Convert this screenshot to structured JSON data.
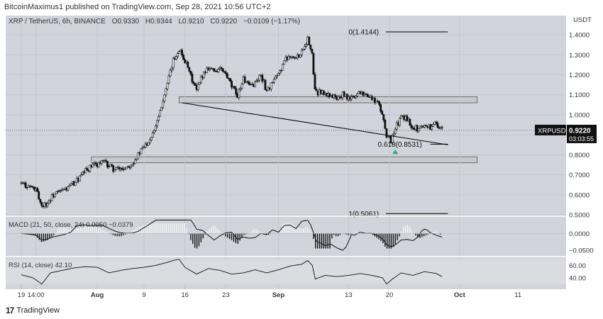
{
  "header": {
    "publisher": "BitcoinMaximus1 published on TradingView.com, Sep 28, 2021 10:56 UTC+2"
  },
  "legend": {
    "pair": "XRP / TetherUS, 6h, BINANCE",
    "o": "0.9330",
    "h": "0.9344",
    "l": "0.9210",
    "c": "0.9220",
    "chg": "−0.0109 (−1.17%)"
  },
  "footer": {
    "brand": "TradingView"
  },
  "chart_data": {
    "type": "candlestick",
    "symbol": "XRPUSDT",
    "last_price": "0.9220",
    "countdown": "03:03:55",
    "currency_label": "USDT",
    "price_ticks": [
      "1.4000",
      "1.3000",
      "1.2000",
      "1.1000",
      "1.0000",
      "0.9000",
      "0.8000",
      "0.7000",
      "0.6000",
      "0.5000"
    ],
    "price_tick_values": [
      1.4,
      1.3,
      1.2,
      1.1,
      1.0,
      0.9,
      0.8,
      0.7,
      0.6,
      0.5
    ],
    "ylim": [
      0.5,
      1.45
    ],
    "xlim": [
      0,
      84
    ],
    "x_ticks": [
      {
        "label": "19",
        "d": 0
      },
      {
        "label": "14:00",
        "d": 2.5
      },
      {
        "label": "Aug",
        "d": 13
      },
      {
        "label": "9",
        "d": 21
      },
      {
        "label": "16",
        "d": 28
      },
      {
        "label": "23",
        "d": 35
      },
      {
        "label": "Sep",
        "d": 44
      },
      {
        "label": "13",
        "d": 56
      },
      {
        "label": "20",
        "d": 63
      },
      {
        "label": "Oct",
        "d": 75
      },
      {
        "label": "11",
        "d": 85
      }
    ],
    "closes": [
      {
        "d": 0,
        "p": 0.655
      },
      {
        "d": 1.5,
        "p": 0.64
      },
      {
        "d": 2.5,
        "p": 0.625
      },
      {
        "d": 3.5,
        "p": 0.545
      },
      {
        "d": 4.5,
        "p": 0.56
      },
      {
        "d": 5.5,
        "p": 0.6
      },
      {
        "d": 7,
        "p": 0.62
      },
      {
        "d": 8,
        "p": 0.635
      },
      {
        "d": 9,
        "p": 0.66
      },
      {
        "d": 10,
        "p": 0.685
      },
      {
        "d": 11,
        "p": 0.72
      },
      {
        "d": 12,
        "p": 0.74
      },
      {
        "d": 13,
        "p": 0.755
      },
      {
        "d": 14,
        "p": 0.765
      },
      {
        "d": 15,
        "p": 0.745
      },
      {
        "d": 16,
        "p": 0.725
      },
      {
        "d": 17,
        "p": 0.73
      },
      {
        "d": 18,
        "p": 0.74
      },
      {
        "d": 19,
        "p": 0.76
      },
      {
        "d": 20,
        "p": 0.8
      },
      {
        "d": 21,
        "p": 0.84
      },
      {
        "d": 22,
        "p": 0.88
      },
      {
        "d": 23,
        "p": 0.95
      },
      {
        "d": 24,
        "p": 1.05
      },
      {
        "d": 25,
        "p": 1.15
      },
      {
        "d": 26,
        "p": 1.27
      },
      {
        "d": 27,
        "p": 1.33
      },
      {
        "d": 28,
        "p": 1.27
      },
      {
        "d": 29,
        "p": 1.19
      },
      {
        "d": 30,
        "p": 1.12
      },
      {
        "d": 31,
        "p": 1.2
      },
      {
        "d": 32,
        "p": 1.24
      },
      {
        "d": 33,
        "p": 1.22
      },
      {
        "d": 34,
        "p": 1.23
      },
      {
        "d": 35,
        "p": 1.2
      },
      {
        "d": 36,
        "p": 1.14
      },
      {
        "d": 37,
        "p": 1.1
      },
      {
        "d": 38,
        "p": 1.18
      },
      {
        "d": 39,
        "p": 1.14
      },
      {
        "d": 40,
        "p": 1.16
      },
      {
        "d": 41,
        "p": 1.2
      },
      {
        "d": 42,
        "p": 1.12
      },
      {
        "d": 43,
        "p": 1.16
      },
      {
        "d": 44,
        "p": 1.2
      },
      {
        "d": 45,
        "p": 1.27
      },
      {
        "d": 46,
        "p": 1.3
      },
      {
        "d": 47,
        "p": 1.28
      },
      {
        "d": 48,
        "p": 1.32
      },
      {
        "d": 49,
        "p": 1.38
      },
      {
        "d": 49.8,
        "p": 1.29
      },
      {
        "d": 50.3,
        "p": 1.1
      },
      {
        "d": 51,
        "p": 1.12
      },
      {
        "d": 52,
        "p": 1.1
      },
      {
        "d": 53,
        "p": 1.1
      },
      {
        "d": 54,
        "p": 1.08
      },
      {
        "d": 55,
        "p": 1.1
      },
      {
        "d": 56,
        "p": 1.08
      },
      {
        "d": 57,
        "p": 1.09
      },
      {
        "d": 58,
        "p": 1.12
      },
      {
        "d": 59,
        "p": 1.1
      },
      {
        "d": 60,
        "p": 1.08
      },
      {
        "d": 61,
        "p": 1.06
      },
      {
        "d": 61.8,
        "p": 1.0
      },
      {
        "d": 62.5,
        "p": 0.9
      },
      {
        "d": 63.2,
        "p": 0.87
      },
      {
        "d": 64,
        "p": 0.93
      },
      {
        "d": 65,
        "p": 0.99
      },
      {
        "d": 66,
        "p": 0.98
      },
      {
        "d": 67,
        "p": 0.94
      },
      {
        "d": 68,
        "p": 0.93
      },
      {
        "d": 69,
        "p": 0.95
      },
      {
        "d": 70,
        "p": 0.94
      },
      {
        "d": 71,
        "p": 0.96
      },
      {
        "d": 72,
        "p": 0.92
      }
    ],
    "resistance_zone": [
      1.06,
      1.09
    ],
    "support_zone": [
      0.76,
      0.79
    ],
    "trendline": [
      {
        "d": 27.5,
        "p": 1.06
      },
      {
        "d": 73,
        "p": 0.85
      }
    ],
    "fib_levels": [
      {
        "label": "0(1.4144)",
        "p": 1.4144
      },
      {
        "label": "0.618(0.8531)",
        "p": 0.8531
      },
      {
        "label": "1(0.5061)",
        "p": 0.5061
      }
    ],
    "marker": {
      "d": 64,
      "p": 0.815,
      "color": "#26a69a"
    },
    "macd": {
      "label": "MACD (21, 50, close, 24)",
      "values": [
        "0.0050",
        "−0.0379"
      ],
      "ticks": [
        {
          "label": "0.0000",
          "v": 0
        },
        {
          "label": "−0.0500",
          "v": -0.05
        }
      ],
      "ylim": [
        -0.065,
        0.045
      ]
    },
    "rsi": {
      "label": "RSI (14, close)",
      "value": "42.10",
      "ticks": [
        {
          "label": "60.00",
          "v": 60
        },
        {
          "label": "40.00",
          "v": 40
        }
      ],
      "ylim": [
        25,
        72
      ],
      "band": [
        30,
        70
      ],
      "closes": [
        {
          "d": 0,
          "p": 45
        },
        {
          "d": 2,
          "p": 40
        },
        {
          "d": 3.5,
          "p": 30
        },
        {
          "d": 5,
          "p": 48
        },
        {
          "d": 7,
          "p": 52
        },
        {
          "d": 9,
          "p": 56
        },
        {
          "d": 11,
          "p": 58
        },
        {
          "d": 13,
          "p": 57
        },
        {
          "d": 15,
          "p": 48
        },
        {
          "d": 17,
          "p": 52
        },
        {
          "d": 19,
          "p": 55
        },
        {
          "d": 21,
          "p": 57
        },
        {
          "d": 23,
          "p": 60
        },
        {
          "d": 25,
          "p": 65
        },
        {
          "d": 26,
          "p": 68
        },
        {
          "d": 27,
          "p": 70
        },
        {
          "d": 28,
          "p": 57
        },
        {
          "d": 30,
          "p": 46
        },
        {
          "d": 32,
          "p": 55
        },
        {
          "d": 34,
          "p": 52
        },
        {
          "d": 36,
          "p": 46
        },
        {
          "d": 38,
          "p": 48
        },
        {
          "d": 40,
          "p": 53
        },
        {
          "d": 42,
          "p": 48
        },
        {
          "d": 44,
          "p": 53
        },
        {
          "d": 46,
          "p": 59
        },
        {
          "d": 48,
          "p": 62
        },
        {
          "d": 49,
          "p": 68
        },
        {
          "d": 49.8,
          "p": 60
        },
        {
          "d": 50.3,
          "p": 38
        },
        {
          "d": 52,
          "p": 44
        },
        {
          "d": 54,
          "p": 42
        },
        {
          "d": 56,
          "p": 44
        },
        {
          "d": 58,
          "p": 47
        },
        {
          "d": 60,
          "p": 44
        },
        {
          "d": 61.8,
          "p": 40
        },
        {
          "d": 62.5,
          "p": 30
        },
        {
          "d": 63.5,
          "p": 38
        },
        {
          "d": 65,
          "p": 48
        },
        {
          "d": 67,
          "p": 44
        },
        {
          "d": 69,
          "p": 50
        },
        {
          "d": 71,
          "p": 47
        },
        {
          "d": 72,
          "p": 42
        }
      ]
    }
  }
}
